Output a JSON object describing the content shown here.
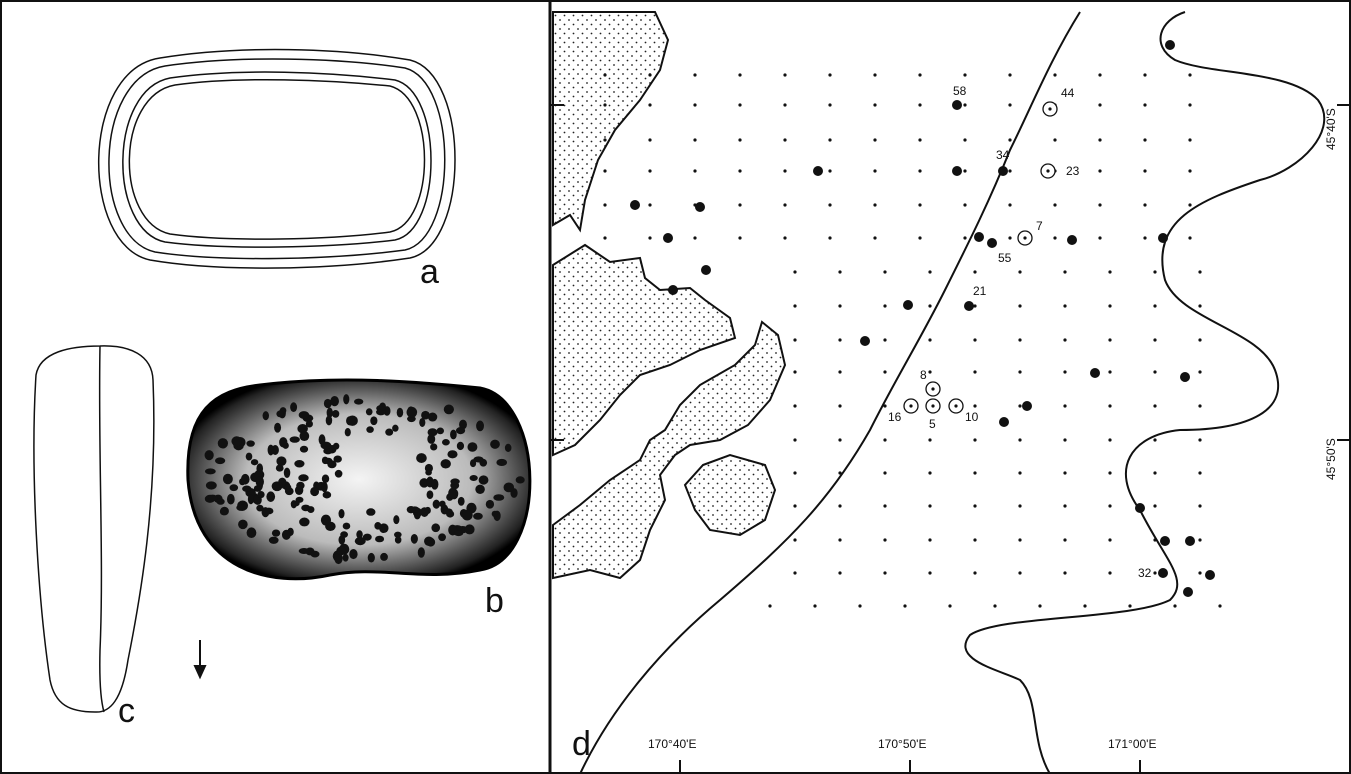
{
  "panel_labels": [
    "a",
    "b",
    "c",
    "d"
  ],
  "map": {
    "stations": [
      "58",
      "44",
      "34",
      "23",
      "7",
      "55",
      "21",
      "8",
      "16",
      "5",
      "10",
      "32"
    ],
    "longitudes": [
      "170°40'E",
      "170°50'E",
      "171°00'E"
    ],
    "latitudes": [
      "45°40'S",
      "45°50'S"
    ]
  }
}
